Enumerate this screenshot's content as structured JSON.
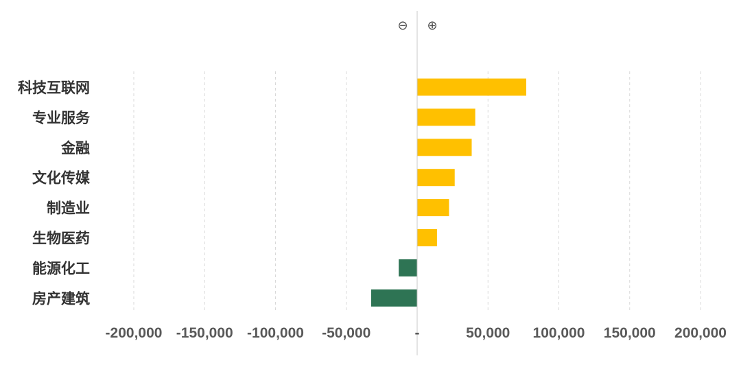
{
  "chart_data": {
    "type": "bar",
    "orientation": "horizontal",
    "categories": [
      "科技互联网",
      "专业服务",
      "金融",
      "文化传媒",
      "制造业",
      "生物医药",
      "能源化工",
      "房产建筑"
    ],
    "values": [
      77000,
      41000,
      38500,
      26500,
      22500,
      14000,
      -13000,
      -32500
    ],
    "xlim": [
      -200000,
      200000
    ],
    "x_ticks": [
      -200000,
      -150000,
      -100000,
      -50000,
      0,
      50000,
      100000,
      150000,
      200000
    ],
    "x_tick_labels": [
      "-200,000",
      "-150,000",
      "-100,000",
      "-50,000",
      "-",
      "50,000",
      "100,000",
      "150,000",
      "200,000"
    ],
    "grid": "vertical dashed",
    "colors": {
      "positive": "#ffc000",
      "negative": "#2e7454"
    },
    "sign_markers": {
      "negative": "⊖",
      "positive": "⊕"
    }
  }
}
